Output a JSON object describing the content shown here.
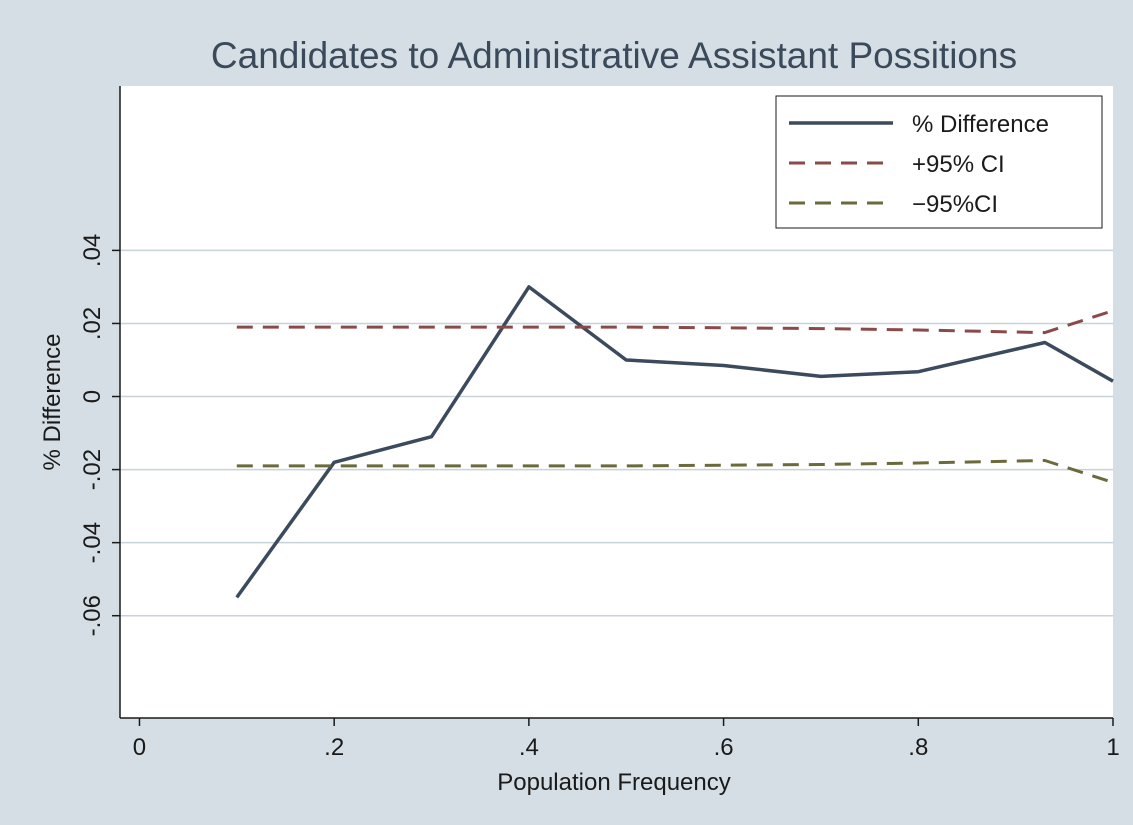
{
  "chart_data": {
    "type": "line",
    "title": "Candidates to Administrative Assistant Possitions",
    "xlabel": "Population Frequency",
    "ylabel": "% Difference",
    "xlim": [
      -0.02,
      1.0
    ],
    "ylim": [
      -0.088,
      0.085
    ],
    "x_ticks": [
      0,
      0.2,
      0.4,
      0.6,
      0.8,
      1
    ],
    "x_tick_labels": [
      "0",
      ".2",
      ".4",
      ".6",
      ".8",
      "1"
    ],
    "y_ticks": [
      -0.06,
      -0.04,
      -0.02,
      0,
      0.02,
      0.04
    ],
    "y_tick_labels": [
      "-.06",
      "-.04",
      "-.02",
      "0",
      ".02",
      ".04"
    ],
    "grid": "horizontal",
    "legend_position": "top-right",
    "colors": {
      "frame_background": "#d5dee4",
      "plot_background": "#ffffff",
      "grid": "#c8d2d9",
      "text": "#1a1a1a",
      "title": "#3a4a5a"
    },
    "series": [
      {
        "name": "% Difference",
        "style": "solid",
        "color": "#3b4a5c",
        "x": [
          0.1,
          0.2,
          0.3,
          0.4,
          0.5,
          0.6,
          0.7,
          0.8,
          0.93,
          1.0
        ],
        "y": [
          -0.055,
          -0.018,
          -0.011,
          0.03,
          0.01,
          0.0085,
          0.0055,
          0.0068,
          0.0148,
          0.0042
        ]
      },
      {
        "name": "+95% CI",
        "style": "dashed",
        "color": "#8b4a4a",
        "x": [
          0.1,
          0.2,
          0.3,
          0.4,
          0.5,
          0.6,
          0.7,
          0.8,
          0.93,
          1.0
        ],
        "y": [
          0.019,
          0.019,
          0.019,
          0.019,
          0.019,
          0.0188,
          0.0186,
          0.0182,
          0.0175,
          0.0235
        ]
      },
      {
        "name": "−95%CI",
        "style": "dashed",
        "color": "#6b6a3c",
        "x": [
          0.1,
          0.2,
          0.3,
          0.4,
          0.5,
          0.6,
          0.7,
          0.8,
          0.93,
          1.0
        ],
        "y": [
          -0.019,
          -0.019,
          -0.019,
          -0.019,
          -0.019,
          -0.0188,
          -0.0186,
          -0.0182,
          -0.0175,
          -0.0235
        ]
      }
    ]
  }
}
